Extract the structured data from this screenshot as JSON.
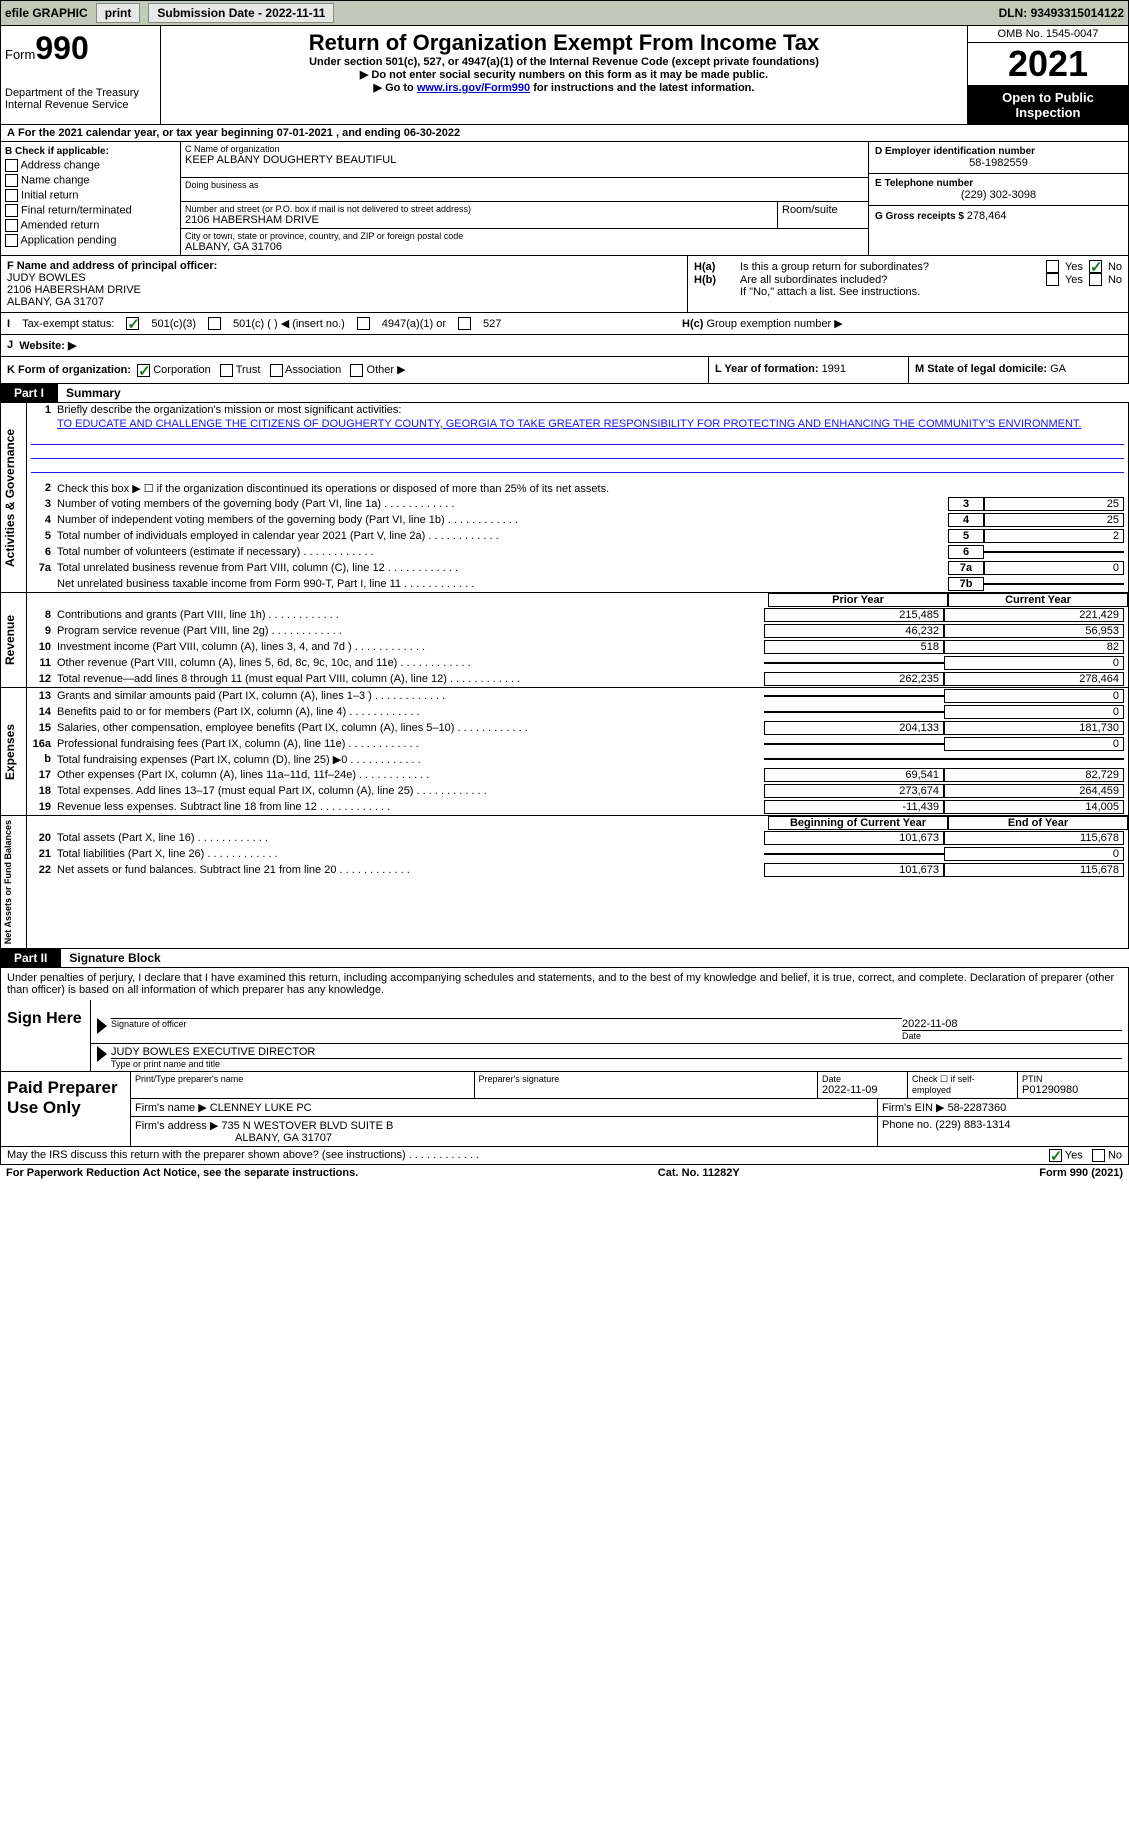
{
  "topbar": {
    "efile": "efile GRAPHIC",
    "print": "print",
    "submission_label": "Submission Date - ",
    "submission_date": "2022-11-11",
    "dln_label": "DLN: ",
    "dln": "93493315014122"
  },
  "header": {
    "form_label": "Form",
    "form_no": "990",
    "dept1": "Department of the Treasury",
    "dept2": "Internal Revenue Service",
    "title": "Return of Organization Exempt From Income Tax",
    "subtitle": "Under section 501(c), 527, or 4947(a)(1) of the Internal Revenue Code (except private foundations)",
    "arrow1": "▶ Do not enter social security numbers on this form as it may be made public.",
    "arrow2_pre": "▶ Go to ",
    "arrow2_link": "www.irs.gov/Form990",
    "arrow2_post": " for instructions and the latest information.",
    "omb": "OMB No. 1545-0047",
    "year": "2021",
    "open1": "Open to Public",
    "open2": "Inspection"
  },
  "row_a": {
    "a": "A",
    "text1": "For the 2021 calendar year, or tax year beginning ",
    "begin": "07-01-2021",
    "text2": " , and ending ",
    "end": "06-30-2022"
  },
  "col_b": {
    "hdr": "B Check if applicable:",
    "items": [
      "Address change",
      "Name change",
      "Initial return",
      "Final return/terminated",
      "Amended return",
      "Application pending"
    ]
  },
  "col_c": {
    "name_lbl": "C Name of organization",
    "name": "KEEP ALBANY DOUGHERTY BEAUTIFUL",
    "dba": "Doing business as",
    "addr_lbl": "Number and street (or P.O. box if mail is not delivered to street address)",
    "addr": "2106 HABERSHAM DRIVE",
    "room_lbl": "Room/suite",
    "city_lbl": "City or town, state or province, country, and ZIP or foreign postal code",
    "city": "ALBANY, GA  31706"
  },
  "col_d": {
    "ein_lbl": "D Employer identification number",
    "ein": "58-1982559",
    "tel_lbl": "E Telephone number",
    "tel": "(229) 302-3098",
    "gross_lbl": "G Gross receipts $ ",
    "gross": "278,464"
  },
  "f": {
    "lbl": "F Name and address of principal officer:",
    "name": "JUDY BOWLES",
    "addr1": "2106 HABERSHAM DRIVE",
    "addr2": "ALBANY, GA  31707"
  },
  "h": {
    "a_lbl": "H(a)",
    "a_text": "Is this a group return for subordinates?",
    "b_lbl": "H(b)",
    "b_text": "Are all subordinates included?",
    "b_note": "If \"No,\" attach a list. See instructions.",
    "c_lbl": "H(c)",
    "c_text": "Group exemption number ▶",
    "yes": "Yes",
    "no": "No"
  },
  "i": {
    "lbl": "I",
    "text": "Tax-exempt status:",
    "o1": "501(c)(3)",
    "o2": "501(c) (   ) ◀ (insert no.)",
    "o3": "4947(a)(1) or",
    "o4": "527"
  },
  "j": {
    "lbl": "J",
    "text": "Website: ▶"
  },
  "k": {
    "lbl": "K Form of organization:",
    "o1": "Corporation",
    "o2": "Trust",
    "o3": "Association",
    "o4": "Other ▶",
    "l_lbl": "L Year of formation: ",
    "l_val": "1991",
    "m_lbl": "M State of legal domicile: ",
    "m_val": "GA"
  },
  "parts": {
    "p1": "Part I",
    "p1t": "Summary",
    "p2": "Part II",
    "p2t": "Signature Block"
  },
  "summary": {
    "vtabs": [
      "Activities & Governance",
      "Revenue",
      "Expenses",
      "Net Assets or Fund Balances"
    ],
    "l1": "Briefly describe the organization's mission or most significant activities:",
    "mission": "TO EDUCATE AND CHALLENGE THE CITIZENS OF DOUGHERTY COUNTY, GEORGIA TO TAKE GREATER RESPONSIBILITY FOR PROTECTING AND ENHANCING THE COMMUNITY'S ENVIRONMENT.",
    "l2": "Check this box ▶ ☐ if the organization discontinued its operations or disposed of more than 25% of its net assets.",
    "lines_gov": [
      {
        "n": "3",
        "t": "Number of voting members of the governing body (Part VI, line 1a)",
        "b": "3",
        "v": "25"
      },
      {
        "n": "4",
        "t": "Number of independent voting members of the governing body (Part VI, line 1b)",
        "b": "4",
        "v": "25"
      },
      {
        "n": "5",
        "t": "Total number of individuals employed in calendar year 2021 (Part V, line 2a)",
        "b": "5",
        "v": "2"
      },
      {
        "n": "6",
        "t": "Total number of volunteers (estimate if necessary)",
        "b": "6",
        "v": ""
      },
      {
        "n": "7a",
        "t": "Total unrelated business revenue from Part VIII, column (C), line 12",
        "b": "7a",
        "v": "0"
      },
      {
        "n": "",
        "t": "Net unrelated business taxable income from Form 990-T, Part I, line 11",
        "b": "7b",
        "v": ""
      }
    ],
    "hdr_prior": "Prior Year",
    "hdr_curr": "Current Year",
    "revenue": [
      {
        "n": "8",
        "t": "Contributions and grants (Part VIII, line 1h)",
        "p": "215,485",
        "c": "221,429"
      },
      {
        "n": "9",
        "t": "Program service revenue (Part VIII, line 2g)",
        "p": "46,232",
        "c": "56,953"
      },
      {
        "n": "10",
        "t": "Investment income (Part VIII, column (A), lines 3, 4, and 7d )",
        "p": "518",
        "c": "82"
      },
      {
        "n": "11",
        "t": "Other revenue (Part VIII, column (A), lines 5, 6d, 8c, 9c, 10c, and 11e)",
        "p": "",
        "c": "0"
      },
      {
        "n": "12",
        "t": "Total revenue—add lines 8 through 11 (must equal Part VIII, column (A), line 12)",
        "p": "262,235",
        "c": "278,464"
      }
    ],
    "expenses": [
      {
        "n": "13",
        "t": "Grants and similar amounts paid (Part IX, column (A), lines 1–3 )",
        "p": "",
        "c": "0"
      },
      {
        "n": "14",
        "t": "Benefits paid to or for members (Part IX, column (A), line 4)",
        "p": "",
        "c": "0"
      },
      {
        "n": "15",
        "t": "Salaries, other compensation, employee benefits (Part IX, column (A), lines 5–10)",
        "p": "204,133",
        "c": "181,730"
      },
      {
        "n": "16a",
        "t": "Professional fundraising fees (Part IX, column (A), line 11e)",
        "p": "",
        "c": "0"
      },
      {
        "n": "b",
        "t": "Total fundraising expenses (Part IX, column (D), line 25) ▶0",
        "p": "shade",
        "c": "shade"
      },
      {
        "n": "17",
        "t": "Other expenses (Part IX, column (A), lines 11a–11d, 11f–24e)",
        "p": "69,541",
        "c": "82,729"
      },
      {
        "n": "18",
        "t": "Total expenses. Add lines 13–17 (must equal Part IX, column (A), line 25)",
        "p": "273,674",
        "c": "264,459"
      },
      {
        "n": "19",
        "t": "Revenue less expenses. Subtract line 18 from line 12",
        "p": "-11,439",
        "c": "14,005"
      }
    ],
    "hdr_boy": "Beginning of Current Year",
    "hdr_eoy": "End of Year",
    "netassets": [
      {
        "n": "20",
        "t": "Total assets (Part X, line 16)",
        "p": "101,673",
        "c": "115,678"
      },
      {
        "n": "21",
        "t": "Total liabilities (Part X, line 26)",
        "p": "",
        "c": "0"
      },
      {
        "n": "22",
        "t": "Net assets or fund balances. Subtract line 21 from line 20",
        "p": "101,673",
        "c": "115,678"
      }
    ]
  },
  "sig": {
    "declare": "Under penalties of perjury, I declare that I have examined this return, including accompanying schedules and statements, and to the best of my knowledge and belief, it is true, correct, and complete. Declaration of preparer (other than officer) is based on all information of which preparer has any knowledge.",
    "sign_here": "Sign Here",
    "sig_officer": "Signature of officer",
    "date_lbl": "Date",
    "date": "2022-11-08",
    "name": "JUDY BOWLES  EXECUTIVE DIRECTOR",
    "name_lbl": "Type or print name and title"
  },
  "paid": {
    "title": "Paid Preparer Use Only",
    "prep_name_lbl": "Print/Type preparer's name",
    "prep_sig_lbl": "Preparer's signature",
    "date_lbl": "Date",
    "date": "2022-11-09",
    "check_lbl": "Check ☐ if self-employed",
    "ptin_lbl": "PTIN",
    "ptin": "P01290980",
    "firm_lbl": "Firm's name    ▶ ",
    "firm": "CLENNEY LUKE PC",
    "ein_lbl": "Firm's EIN ▶ ",
    "ein": "58-2287360",
    "addr_lbl": "Firm's address ▶ ",
    "addr1": "735 N WESTOVER BLVD SUITE B",
    "addr2": "ALBANY, GA  31707",
    "phone_lbl": "Phone no. ",
    "phone": "(229) 883-1314"
  },
  "discuss": {
    "text": "May the IRS discuss this return with the preparer shown above? (see instructions)",
    "yes": "Yes",
    "no": "No"
  },
  "footer": {
    "left": "For Paperwork Reduction Act Notice, see the separate instructions.",
    "mid": "Cat. No. 11282Y",
    "right": "Form 990 (2021)"
  }
}
